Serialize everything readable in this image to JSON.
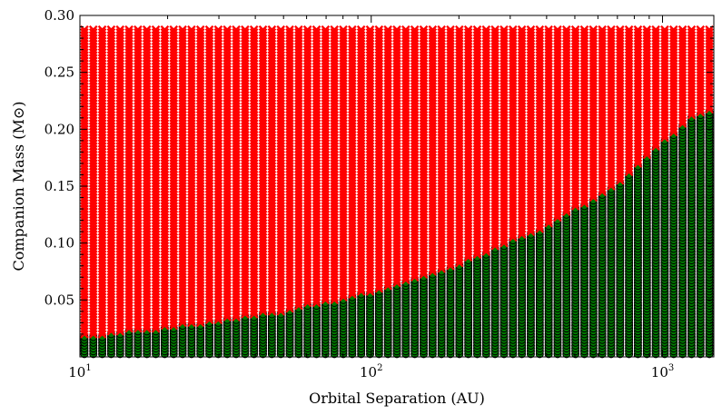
{
  "chart_data": {
    "type": "scatter",
    "title": "",
    "xlabel": "Orbital Separation (AU)",
    "ylabel": "Companion Mass (M⊙)",
    "xscale": "log",
    "xlim": [
      10,
      1500
    ],
    "ylim": [
      0,
      0.3
    ],
    "x_ticks": [
      {
        "value": 10,
        "base": "10",
        "exp": "1"
      },
      {
        "value": 100,
        "base": "10",
        "exp": "2"
      },
      {
        "value": 1000,
        "base": "10",
        "exp": "3"
      }
    ],
    "y_ticks": [
      "0.05",
      "0.10",
      "0.15",
      "0.20",
      "0.25",
      "0.30"
    ],
    "grid": false,
    "legend": "none",
    "series": [
      {
        "marker": "x",
        "color": "#ff0000",
        "meaning": "above boundary"
      },
      {
        "marker": "o",
        "color": "#007a00",
        "edge": "#000000",
        "meaning": "below boundary"
      }
    ],
    "sampling": {
      "n_columns": 71,
      "mass_step": 0.0025,
      "mass_min": 0.0025,
      "mass_max": 0.2875
    },
    "boundary": {
      "x": [
        10,
        11,
        12,
        14,
        17,
        20,
        25,
        30,
        40,
        50,
        60,
        70,
        80,
        90,
        100,
        120,
        140,
        160,
        200,
        250,
        300,
        350,
        400,
        450,
        500,
        600,
        700,
        800,
        900,
        1000,
        1100,
        1200,
        1300,
        1500
      ],
      "y": [
        0.018,
        0.019,
        0.02,
        0.022,
        0.024,
        0.026,
        0.029,
        0.032,
        0.037,
        0.04,
        0.045,
        0.048,
        0.052,
        0.055,
        0.057,
        0.062,
        0.068,
        0.073,
        0.082,
        0.092,
        0.102,
        0.108,
        0.115,
        0.123,
        0.13,
        0.14,
        0.153,
        0.165,
        0.178,
        0.19,
        0.198,
        0.206,
        0.213,
        0.218
      ]
    }
  }
}
